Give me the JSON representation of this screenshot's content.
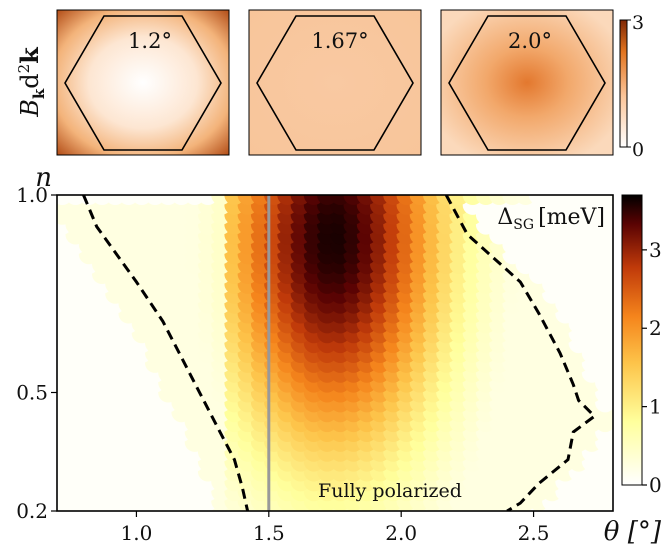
{
  "colors": {
    "accent_dark": "#1a0000",
    "mid_orange": "#f08a20",
    "pale_yellow": "#ffffc8",
    "vertical_line": "#999999",
    "contour": "#000000"
  },
  "top_panels": {
    "ylabel": "B_k d^2 k",
    "ylabel_main": "B",
    "ylabel_sub": "k",
    "ylabel_rest": "d",
    "ylabel_sup": "2",
    "ylabel_k": "k",
    "panels": [
      {
        "label": "1.2°",
        "theta": 1.2
      },
      {
        "label": "1.67°",
        "theta": 1.67
      },
      {
        "label": "2.0°",
        "theta": 2.0
      }
    ],
    "colorbar": {
      "min_label": "0",
      "max_label": "3",
      "min": 0,
      "max": 3
    }
  },
  "chart_data": {
    "type": "heatmap",
    "title": "",
    "xlabel": "θ [°]",
    "ylabel": "n",
    "xlim": [
      0.7,
      2.8
    ],
    "ylim": [
      0.2,
      1.0
    ],
    "x_ticks": [
      "1.0",
      "1.5",
      "2.0",
      "2.5"
    ],
    "x_tick_values": [
      1.0,
      1.5,
      2.0,
      2.5
    ],
    "y_ticks": [
      "0.2",
      "0.5",
      "1.0"
    ],
    "y_tick_values": [
      0.2,
      0.5,
      1.0
    ],
    "colorbar_label": "Δ_SG [meV]",
    "colorbar_label_main": "Δ",
    "colorbar_label_sub": "SG",
    "colorbar_label_unit": "[meV]",
    "colorbar_ticks": [
      "0",
      "1",
      "2",
      "3"
    ],
    "colorbar_tick_values": [
      0,
      1,
      2,
      3
    ],
    "colorbar_range": [
      0,
      3.7
    ],
    "reference_line_theta": 1.5,
    "annotation": "Fully polarized",
    "peak": {
      "theta": 1.75,
      "n": 0.9,
      "value": 3.6
    },
    "contour_left": [
      [
        0.8,
        1.0
      ],
      [
        0.85,
        0.92
      ],
      [
        1.0,
        0.78
      ],
      [
        1.1,
        0.68
      ],
      [
        1.2,
        0.55
      ],
      [
        1.3,
        0.42
      ],
      [
        1.37,
        0.33
      ],
      [
        1.4,
        0.26
      ],
      [
        1.42,
        0.2
      ]
    ],
    "contour_right": [
      [
        2.17,
        1.0
      ],
      [
        2.25,
        0.9
      ],
      [
        2.45,
        0.78
      ],
      [
        2.52,
        0.7
      ],
      [
        2.6,
        0.6
      ],
      [
        2.65,
        0.52
      ],
      [
        2.67,
        0.48
      ],
      [
        2.73,
        0.44
      ],
      [
        2.65,
        0.4
      ],
      [
        2.63,
        0.33
      ],
      [
        2.52,
        0.27
      ],
      [
        2.45,
        0.22
      ],
      [
        2.4,
        0.2
      ]
    ]
  }
}
